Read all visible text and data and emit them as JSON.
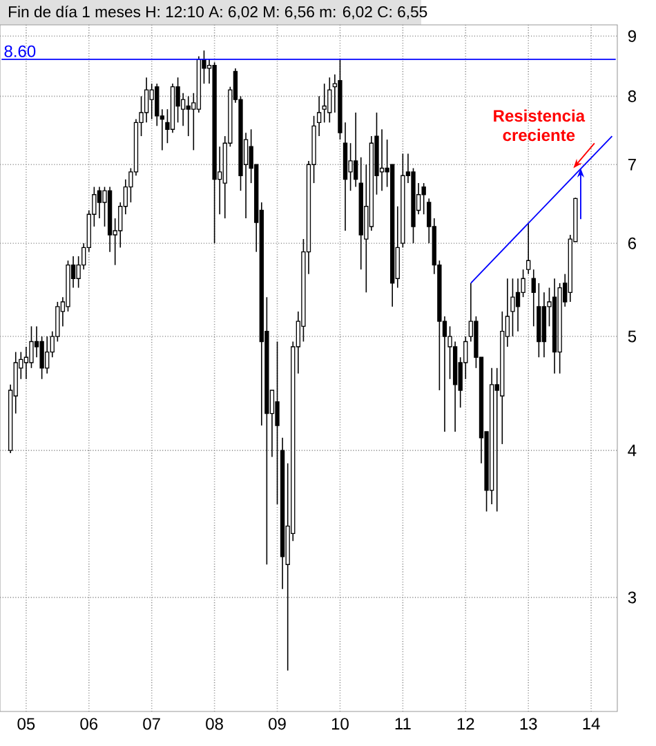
{
  "chart_data": {
    "type": "candlestick",
    "title": "Fin de día 1 meses  H: 12:10  A: 6,02  M: 6,56  m: 6,02  C: 6,55",
    "x": [
      "2004-10",
      "2004-11",
      "2004-12",
      "2005-01",
      "2005-02",
      "2005-03",
      "2005-04",
      "2005-05",
      "2005-06",
      "2005-07",
      "2005-08",
      "2005-09",
      "2005-10",
      "2005-11",
      "2005-12",
      "2006-01",
      "2006-02",
      "2006-03",
      "2006-04",
      "2006-05",
      "2006-06",
      "2006-07",
      "2006-08",
      "2006-09",
      "2006-10",
      "2006-11",
      "2006-12",
      "2007-01",
      "2007-02",
      "2007-03",
      "2007-04",
      "2007-05",
      "2007-06",
      "2007-07",
      "2007-08",
      "2007-09",
      "2007-10",
      "2007-11",
      "2007-12",
      "2008-01",
      "2008-02",
      "2008-03",
      "2008-04",
      "2008-05",
      "2008-06",
      "2008-07",
      "2008-08",
      "2008-09",
      "2008-10",
      "2008-11",
      "2008-12",
      "2009-01",
      "2009-02",
      "2009-03",
      "2009-04",
      "2009-05",
      "2009-06",
      "2009-07",
      "2009-08",
      "2009-09",
      "2009-10",
      "2009-11",
      "2009-12",
      "2010-01",
      "2010-02",
      "2010-03",
      "2010-04",
      "2010-05",
      "2010-06",
      "2010-07",
      "2010-08",
      "2010-09",
      "2010-10",
      "2010-11",
      "2010-12",
      "2011-01",
      "2011-02",
      "2011-03",
      "2011-04",
      "2011-05",
      "2011-06",
      "2011-07",
      "2011-08",
      "2011-09",
      "2011-10",
      "2011-11",
      "2011-12",
      "2012-01",
      "2012-02",
      "2012-03",
      "2012-04",
      "2012-05",
      "2012-06",
      "2012-07",
      "2012-08",
      "2012-09",
      "2012-10",
      "2012-11",
      "2012-12",
      "2013-01",
      "2013-02",
      "2013-03",
      "2013-04",
      "2013-05",
      "2013-06",
      "2013-07",
      "2013-08",
      "2013-09",
      "2013-10"
    ],
    "ohlc": [
      [
        4.0,
        4.55,
        3.98,
        4.5
      ],
      [
        4.45,
        4.85,
        4.3,
        4.75
      ],
      [
        4.7,
        4.85,
        4.6,
        4.78
      ],
      [
        4.75,
        4.9,
        4.6,
        4.8
      ],
      [
        4.75,
        5.1,
        4.7,
        4.95
      ],
      [
        4.95,
        5.1,
        4.8,
        4.9
      ],
      [
        4.95,
        5.0,
        4.6,
        4.7
      ],
      [
        4.7,
        5.0,
        4.65,
        4.85
      ],
      [
        4.85,
        5.05,
        4.8,
        5.0
      ],
      [
        5.0,
        5.35,
        4.95,
        5.3
      ],
      [
        5.25,
        5.4,
        5.1,
        5.35
      ],
      [
        5.3,
        5.8,
        5.25,
        5.75
      ],
      [
        5.75,
        5.85,
        5.5,
        5.6
      ],
      [
        5.6,
        5.85,
        5.5,
        5.75
      ],
      [
        5.75,
        6.0,
        5.7,
        5.95
      ],
      [
        5.95,
        6.4,
        5.9,
        6.35
      ],
      [
        6.35,
        6.7,
        6.2,
        6.6
      ],
      [
        6.65,
        6.7,
        6.3,
        6.5
      ],
      [
        6.5,
        6.7,
        6.2,
        6.65
      ],
      [
        6.65,
        6.7,
        5.9,
        6.1
      ],
      [
        6.1,
        6.3,
        5.75,
        6.15
      ],
      [
        6.15,
        6.5,
        5.95,
        6.45
      ],
      [
        6.45,
        6.8,
        6.35,
        6.7
      ],
      [
        6.7,
        6.95,
        6.5,
        6.9
      ],
      [
        6.9,
        7.65,
        6.85,
        7.6
      ],
      [
        7.6,
        8.0,
        7.4,
        7.75
      ],
      [
        7.75,
        8.3,
        7.6,
        8.1
      ],
      [
        7.95,
        8.2,
        7.65,
        8.1
      ],
      [
        8.15,
        8.2,
        7.55,
        7.7
      ],
      [
        7.7,
        7.8,
        7.2,
        7.65
      ],
      [
        7.6,
        7.8,
        7.3,
        7.5
      ],
      [
        7.5,
        8.2,
        7.45,
        8.15
      ],
      [
        8.15,
        8.3,
        7.6,
        7.85
      ],
      [
        7.8,
        8.05,
        7.55,
        7.95
      ],
      [
        7.85,
        8.0,
        7.4,
        7.8
      ],
      [
        7.8,
        8.05,
        7.2,
        7.9
      ],
      [
        7.8,
        8.65,
        7.75,
        8.6
      ],
      [
        8.6,
        8.75,
        8.2,
        8.45
      ],
      [
        8.45,
        8.6,
        8.2,
        8.5
      ],
      [
        8.5,
        8.55,
        6.0,
        6.8
      ],
      [
        6.8,
        7.25,
        6.35,
        6.9
      ],
      [
        6.75,
        7.4,
        6.3,
        7.3
      ],
      [
        7.3,
        8.15,
        7.25,
        8.1
      ],
      [
        8.4,
        8.45,
        7.9,
        7.95
      ],
      [
        7.95,
        8.0,
        6.65,
        6.85
      ],
      [
        7.0,
        7.45,
        6.3,
        7.35
      ],
      [
        7.25,
        7.5,
        6.75,
        6.95
      ],
      [
        7.0,
        7.0,
        5.9,
        6.25
      ],
      [
        6.4,
        6.5,
        4.2,
        4.95
      ],
      [
        5.05,
        5.4,
        3.2,
        4.3
      ],
      [
        4.3,
        4.5,
        3.95,
        4.5
      ],
      [
        4.4,
        4.95,
        3.6,
        4.2
      ],
      [
        4.0,
        4.1,
        3.05,
        3.25
      ],
      [
        3.2,
        3.9,
        2.6,
        3.45
      ],
      [
        3.4,
        4.95,
        3.35,
        4.9
      ],
      [
        4.9,
        5.25,
        4.65,
        5.15
      ],
      [
        5.1,
        6.05,
        4.95,
        5.9
      ],
      [
        5.9,
        7.05,
        5.65,
        7.0
      ],
      [
        7.0,
        7.7,
        6.75,
        7.55
      ],
      [
        7.6,
        8.0,
        7.4,
        7.75
      ],
      [
        7.8,
        8.2,
        7.6,
        7.85
      ],
      [
        7.75,
        8.3,
        7.6,
        8.1
      ],
      [
        8.15,
        8.35,
        7.75,
        8.2
      ],
      [
        8.25,
        8.6,
        7.35,
        7.45
      ],
      [
        7.3,
        7.6,
        6.15,
        6.8
      ],
      [
        6.9,
        7.3,
        6.65,
        7.05
      ],
      [
        7.05,
        7.75,
        6.7,
        6.8
      ],
      [
        6.75,
        7.1,
        5.7,
        6.1
      ],
      [
        6.05,
        7.0,
        5.45,
        6.45
      ],
      [
        6.2,
        7.4,
        6.15,
        7.3
      ],
      [
        7.4,
        7.75,
        6.6,
        6.85
      ],
      [
        6.9,
        7.5,
        6.65,
        6.95
      ],
      [
        6.95,
        7.35,
        6.7,
        6.9
      ],
      [
        7.0,
        7.0,
        5.3,
        5.55
      ],
      [
        5.6,
        6.45,
        5.5,
        5.95
      ],
      [
        6.0,
        7.15,
        5.95,
        6.85
      ],
      [
        6.9,
        7.15,
        6.75,
        6.85
      ],
      [
        6.9,
        6.95,
        6.0,
        6.2
      ],
      [
        6.4,
        6.75,
        6.35,
        6.6
      ],
      [
        6.7,
        6.75,
        6.35,
        6.6
      ],
      [
        6.5,
        6.55,
        6.0,
        6.2
      ],
      [
        6.2,
        6.3,
        5.65,
        5.75
      ],
      [
        5.75,
        5.8,
        4.5,
        5.15
      ],
      [
        5.15,
        5.2,
        4.15,
        5.0
      ],
      [
        4.9,
        5.1,
        4.6,
        5.0
      ],
      [
        4.9,
        4.95,
        4.15,
        4.55
      ],
      [
        4.75,
        4.8,
        4.35,
        4.5
      ],
      [
        4.75,
        5.0,
        4.6,
        4.95
      ],
      [
        5.0,
        5.55,
        4.95,
        5.15
      ],
      [
        5.15,
        5.2,
        4.7,
        4.8
      ],
      [
        4.8,
        4.8,
        3.9,
        4.1
      ],
      [
        4.15,
        4.15,
        3.55,
        3.7
      ],
      [
        3.7,
        4.7,
        3.6,
        4.55
      ],
      [
        4.55,
        4.7,
        3.55,
        4.5
      ],
      [
        4.45,
        5.25,
        4.05,
        5.05
      ],
      [
        5.0,
        5.6,
        4.9,
        5.2
      ],
      [
        5.25,
        5.6,
        5.0,
        5.4
      ],
      [
        5.45,
        5.6,
        5.05,
        5.3
      ],
      [
        5.45,
        5.7,
        5.4,
        5.6
      ],
      [
        5.7,
        6.25,
        5.65,
        5.8
      ],
      [
        5.6,
        5.7,
        5.1,
        5.45
      ],
      [
        5.3,
        5.55,
        4.8,
        4.95
      ],
      [
        5.3,
        5.45,
        4.8,
        4.95
      ],
      [
        5.3,
        5.5,
        5.1,
        5.35
      ],
      [
        5.4,
        5.6,
        4.65,
        4.85
      ],
      [
        4.85,
        5.55,
        4.65,
        5.5
      ],
      [
        5.55,
        5.65,
        5.3,
        5.35
      ],
      [
        5.45,
        6.1,
        5.35,
        6.05
      ],
      [
        6.02,
        6.56,
        6.02,
        6.55
      ]
    ],
    "series": [
      {
        "type": "line",
        "x": [
          "2012-02",
          "2014-05"
        ],
        "values": [
          5.55,
          7.4
        ],
        "color": "#0000ff"
      }
    ],
    "log": "y",
    "xlim": [
      "2004-08",
      "2014-06"
    ],
    "xticks": [
      {
        "value": "2005-01",
        "label": "05"
      },
      {
        "value": "2006-01",
        "label": "06"
      },
      {
        "value": "2007-01",
        "label": "07"
      },
      {
        "value": "2008-01",
        "label": "08"
      },
      {
        "value": "2009-01",
        "label": "09"
      },
      {
        "value": "2010-01",
        "label": "10"
      },
      {
        "value": "2011-01",
        "label": "11"
      },
      {
        "value": "2012-01",
        "label": "12"
      },
      {
        "value": "2013-01",
        "label": "13"
      },
      {
        "value": "2014-01",
        "label": "14"
      }
    ],
    "ylim": [
      2.4,
      9.2
    ],
    "yticks": [
      3,
      4,
      5,
      6,
      7,
      8,
      9
    ],
    "grid": true,
    "ref_lines": [
      {
        "axis": "y",
        "value": 8.6,
        "label": "8.60",
        "color": "#0000ff"
      }
    ],
    "annotations": [
      {
        "text": "Resistencia creciente",
        "x": "2013-10",
        "y": 6.95
      }
    ]
  }
}
